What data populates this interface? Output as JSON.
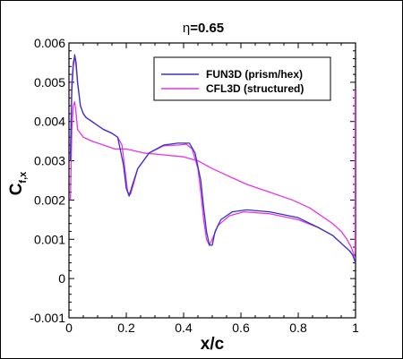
{
  "chart_data": {
    "type": "line",
    "title": "η=0.65",
    "title_symbol": "η",
    "title_value": "=0.65",
    "xlabel": "x/c",
    "ylabel_main": "C",
    "ylabel_sub": "f,x",
    "xlim": [
      0,
      1
    ],
    "ylim": [
      -0.001,
      0.006
    ],
    "x_ticks": [
      0,
      0.2,
      0.4,
      0.6,
      0.8,
      1
    ],
    "x_tick_labels": [
      "0",
      "0.2",
      "0.4",
      "0.6",
      "0.8",
      "1"
    ],
    "y_ticks": [
      -0.001,
      0,
      0.001,
      0.002,
      0.003,
      0.004,
      0.005,
      0.006
    ],
    "y_tick_labels": [
      "-0.001",
      "0",
      "0.001",
      "0.002",
      "0.003",
      "0.004",
      "0.005",
      "0.006"
    ],
    "grid": false,
    "legend_position": "top-right",
    "series": [
      {
        "name": "FUN3D (prism/hex)",
        "color": "#3333cc",
        "lines": [
          {
            "x": [
              0.005,
              0.01,
              0.015,
              0.02,
              0.025,
              0.03,
              0.04,
              0.05,
              0.06,
              0.08,
              0.1,
              0.12,
              0.15,
              0.17,
              0.19,
              0.2,
              0.21,
              0.22,
              0.24,
              0.28,
              0.33,
              0.38,
              0.42,
              0.44,
              0.46,
              0.47,
              0.48,
              0.49,
              0.5,
              0.51,
              0.53,
              0.57,
              0.62,
              0.7,
              0.8,
              0.87,
              0.92,
              0.95,
              0.98,
              0.99,
              0.995,
              1.0
            ],
            "y": [
              0.003,
              0.0048,
              0.0054,
              0.0057,
              0.0055,
              0.005,
              0.0044,
              0.0042,
              0.0041,
              0.004,
              0.0039,
              0.0038,
              0.0037,
              0.0036,
              0.0029,
              0.0023,
              0.0021,
              0.00235,
              0.0028,
              0.0032,
              0.0034,
              0.00345,
              0.00345,
              0.0032,
              0.0025,
              0.0018,
              0.0012,
              0.00085,
              0.00085,
              0.0012,
              0.0015,
              0.0017,
              0.00175,
              0.0017,
              0.00155,
              0.0013,
              0.0011,
              0.0009,
              0.0007,
              0.0006,
              0.0005,
              0.0004
            ]
          }
        ]
      },
      {
        "name": "CFL3D (structured)",
        "color": "#e833e8",
        "lines": [
          {
            "x": [
              0.005,
              0.01,
              0.015,
              0.02,
              0.025,
              0.03,
              0.04,
              0.05,
              0.06,
              0.08,
              0.1,
              0.12,
              0.15,
              0.17,
              0.185,
              0.195,
              0.205,
              0.215,
              0.225,
              0.24,
              0.28,
              0.33,
              0.38,
              0.41,
              0.43,
              0.45,
              0.46,
              0.47,
              0.48,
              0.49,
              0.5,
              0.52,
              0.56,
              0.61,
              0.7,
              0.8,
              0.87,
              0.92,
              0.95,
              0.98,
              0.99,
              0.995,
              1.0
            ],
            "y": [
              0.0032,
              0.005,
              0.0055,
              0.00565,
              0.0054,
              0.005,
              0.0044,
              0.0042,
              0.0041,
              0.004,
              0.0039,
              0.0038,
              0.0037,
              0.0036,
              0.0034,
              0.0028,
              0.0022,
              0.00215,
              0.0024,
              0.0028,
              0.0032,
              0.00338,
              0.0034,
              0.00342,
              0.0033,
              0.0028,
              0.0022,
              0.0015,
              0.001,
              0.00085,
              0.001,
              0.00135,
              0.0016,
              0.0017,
              0.00165,
              0.0015,
              0.0013,
              0.0011,
              0.0009,
              0.0007,
              0.0006,
              0.0005,
              0.0004
            ]
          },
          {
            "x": [
              0.005,
              0.01,
              0.015,
              0.02,
              0.025,
              0.03,
              0.05,
              0.08,
              0.12,
              0.16,
              0.2,
              0.26,
              0.33,
              0.4,
              0.45,
              0.5,
              0.56,
              0.62,
              0.7,
              0.78,
              0.84,
              0.88,
              0.92,
              0.95,
              0.97,
              0.985,
              0.995,
              1.0
            ],
            "y": [
              0.002,
              0.0038,
              0.0044,
              0.0045,
              0.0042,
              0.0038,
              0.0036,
              0.0035,
              0.0034,
              0.0033,
              0.0033,
              0.0032,
              0.00315,
              0.0031,
              0.003,
              0.0028,
              0.0026,
              0.0024,
              0.0022,
              0.002,
              0.0018,
              0.0016,
              0.0014,
              0.0012,
              0.001,
              0.0008,
              0.0006,
              0.0005
            ]
          },
          {
            "x": [
              0.998,
              0.998
            ],
            "y": [
              0.0007,
              0.0048
            ]
          }
        ]
      }
    ]
  }
}
